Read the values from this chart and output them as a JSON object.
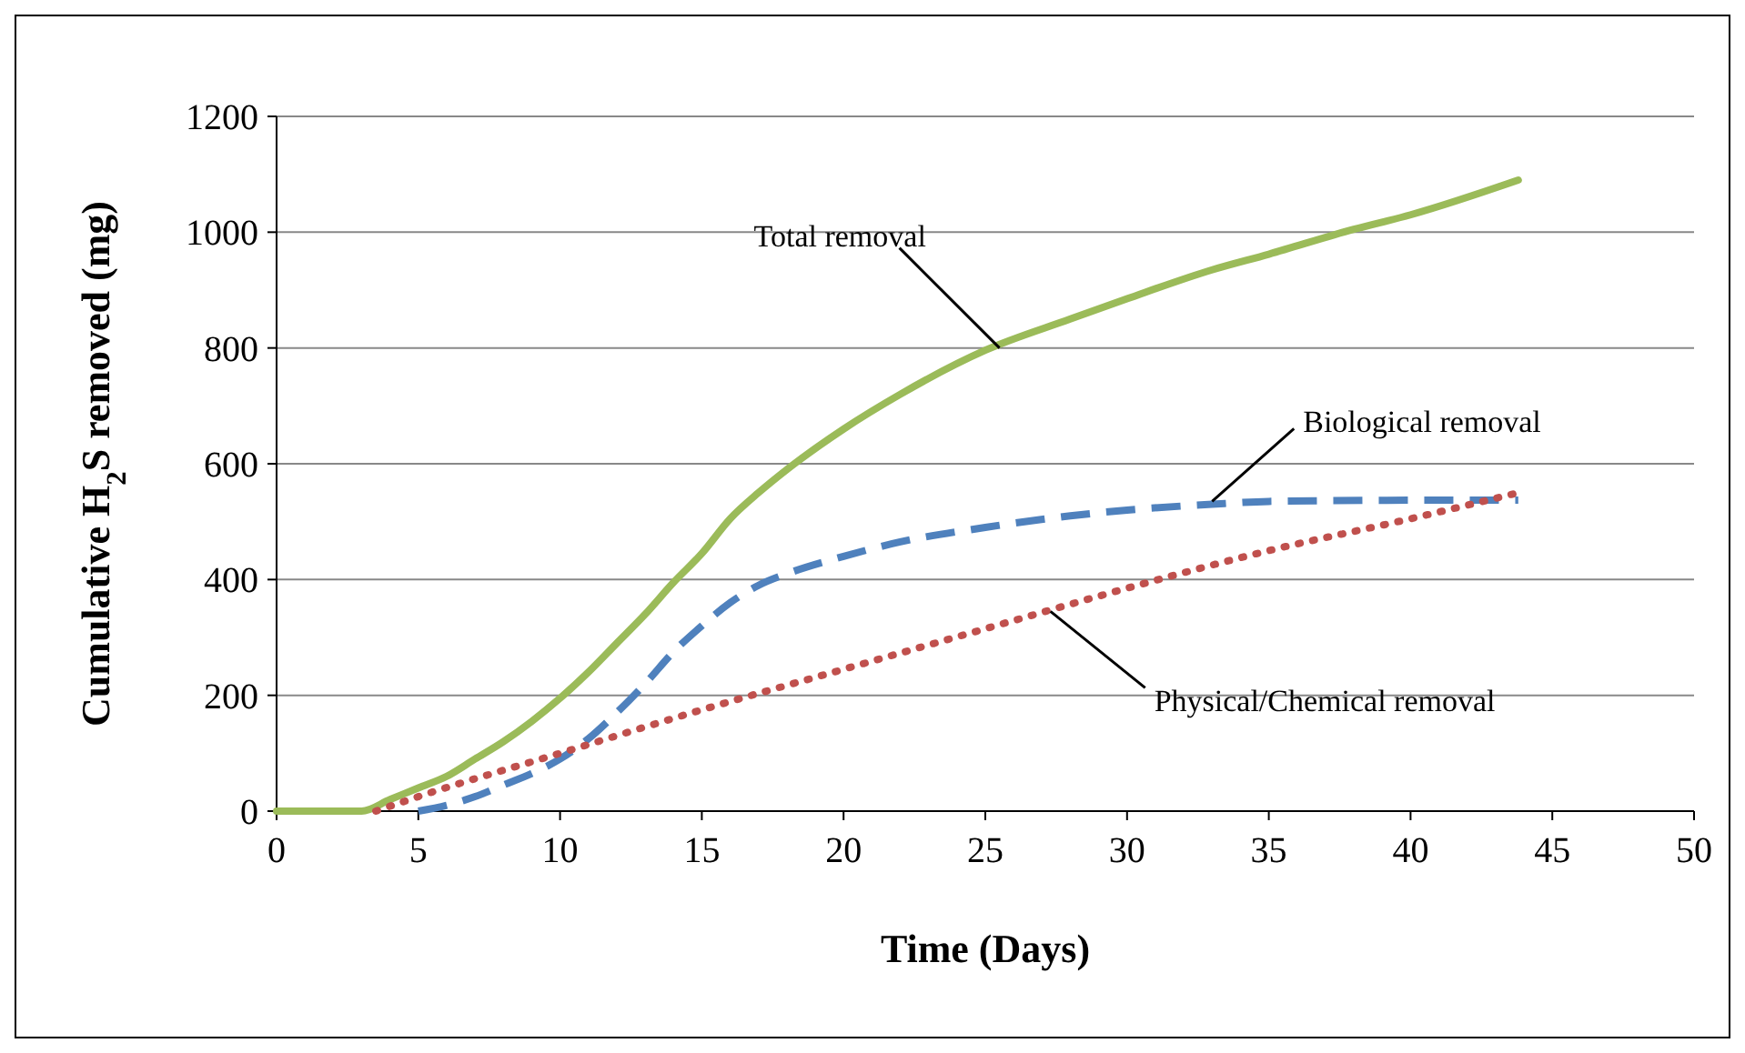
{
  "chart_data": {
    "type": "line",
    "xlabel": "Time (Days)",
    "ylabel": "Cumulative H$_{2}$S removed (mg)",
    "xlim": [
      0,
      50
    ],
    "xticks": [
      0,
      5,
      10,
      15,
      20,
      25,
      30,
      35,
      40,
      45,
      50
    ],
    "ylim": [
      0,
      1200
    ],
    "yticks": [
      0,
      200,
      400,
      600,
      800,
      1000,
      1200
    ],
    "grid": "y",
    "series": [
      {
        "color": "#9bbb59",
        "line_style": "solid",
        "x": [
          0,
          1,
          2,
          3,
          4,
          5,
          6,
          7,
          8,
          9,
          10,
          11,
          12,
          13,
          14,
          15,
          16,
          17,
          18,
          20,
          22,
          25,
          28,
          30,
          33,
          35,
          38,
          40,
          43.8
        ],
        "values": [
          0,
          0,
          0,
          0,
          20,
          40,
          60,
          90,
          120,
          155,
          195,
          240,
          290,
          340,
          395,
          445,
          505,
          550,
          590,
          660,
          720,
          796,
          850,
          885,
          935,
          962,
          1005,
          1030,
          1090
        ]
      },
      {
        "color": "#4f81bd",
        "line_style": "dashed",
        "x": [
          5,
          6,
          7,
          8,
          9,
          10,
          11,
          12,
          13,
          14,
          15,
          16,
          17,
          18,
          20,
          22,
          25,
          28,
          30,
          33,
          35,
          40,
          43.8
        ],
        "values": [
          0,
          10,
          25,
          45,
          65,
          90,
          125,
          170,
          220,
          275,
          320,
          360,
          390,
          410,
          440,
          465,
          490,
          510,
          520,
          530,
          535,
          537,
          537
        ]
      },
      {
        "color": "#c0504d",
        "line_style": "dotted",
        "x": [
          3.5,
          5,
          10,
          15,
          20,
          25,
          30,
          35,
          40,
          43.8
        ],
        "values": [
          0,
          25,
          100,
          175,
          245,
          315,
          385,
          450,
          505,
          550
        ]
      }
    ],
    "annotations": [
      {
        "text": "Total removal",
        "x": 25.5,
        "y": 800
      },
      {
        "text": "Biological removal",
        "x": 33,
        "y": 535
      },
      {
        "text": "Physical/Chemical removal",
        "x": 27.3,
        "y": 345
      }
    ]
  }
}
